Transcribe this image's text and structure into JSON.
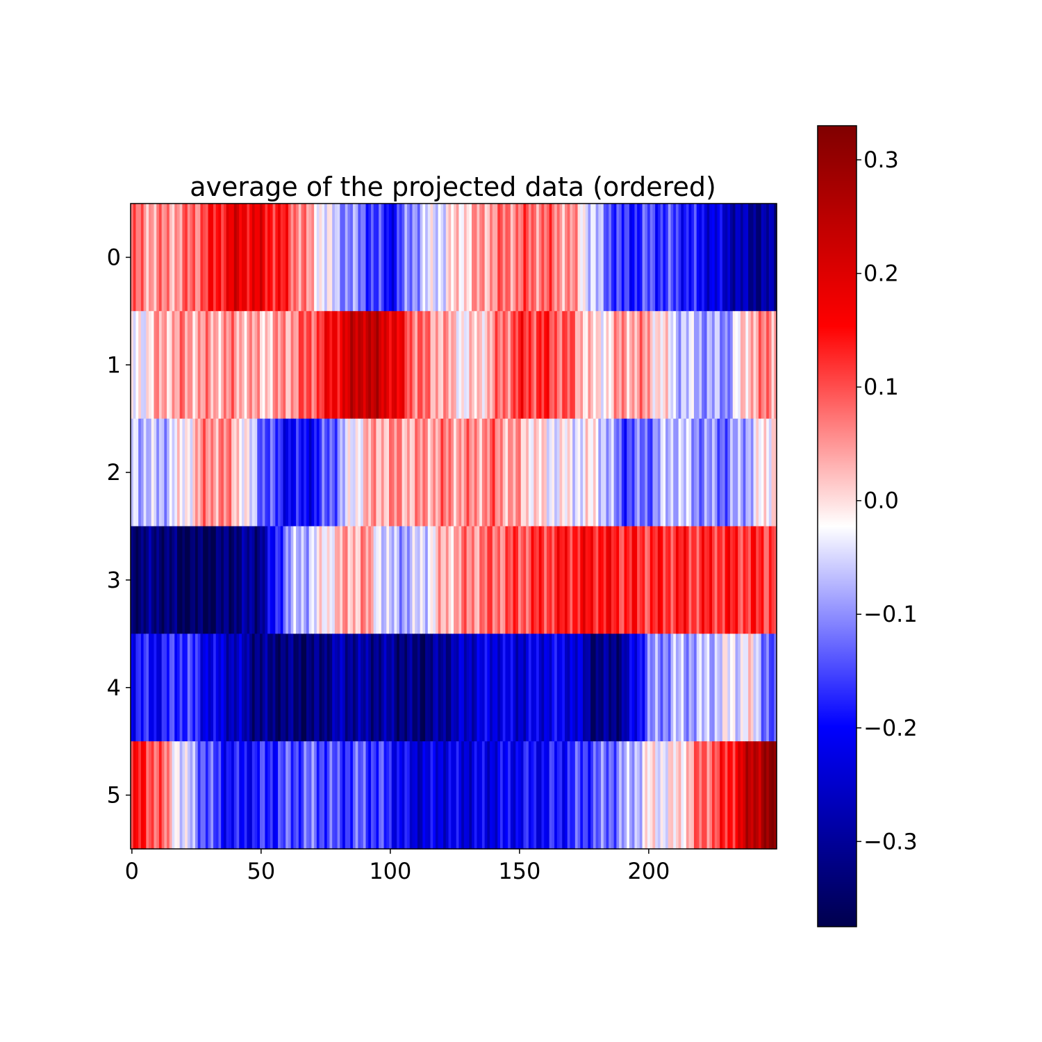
{
  "chart_data": {
    "type": "heatmap",
    "title": "average of the projected data (ordered)",
    "xlabel": "",
    "ylabel": "",
    "colormap": "seismic",
    "n_columns": 250,
    "rows": [
      0,
      1,
      2,
      3,
      4,
      5
    ],
    "xticks": [
      0,
      50,
      100,
      150,
      200
    ],
    "xlim": [
      -0.5,
      249.5
    ],
    "yticks": [
      0,
      1,
      2,
      3,
      4,
      5
    ],
    "vmin": -0.375,
    "vmax": 0.33,
    "colorbar_ticks": [
      0.3,
      0.2,
      0.1,
      0.0,
      -0.1,
      -0.2,
      -0.3
    ],
    "colorbar_tick_labels": [
      "0.3",
      "0.2",
      "0.1",
      "0.0",
      "−0.1",
      "−0.2",
      "−0.3"
    ],
    "row_profiles": [
      {
        "row": 0,
        "x": [
          0,
          10,
          20,
          30,
          40,
          50,
          60,
          70,
          80,
          90,
          100,
          110,
          120,
          130,
          140,
          150,
          160,
          170,
          180,
          190,
          200,
          210,
          220,
          230,
          240,
          249
        ],
        "values": [
          0.07,
          0.05,
          0.06,
          0.12,
          0.19,
          0.17,
          0.12,
          0.02,
          -0.08,
          -0.13,
          -0.2,
          -0.08,
          -0.03,
          0.02,
          0.06,
          0.08,
          0.08,
          0.05,
          -0.08,
          -0.18,
          -0.15,
          -0.16,
          -0.2,
          -0.25,
          -0.3,
          -0.3
        ]
      },
      {
        "row": 1,
        "x": [
          0,
          10,
          20,
          30,
          40,
          50,
          60,
          70,
          80,
          90,
          100,
          110,
          120,
          130,
          140,
          150,
          160,
          170,
          180,
          190,
          200,
          210,
          220,
          230,
          240,
          249
        ],
        "values": [
          -0.05,
          0.03,
          0.05,
          0.04,
          0.05,
          0.02,
          0.05,
          0.1,
          0.18,
          0.25,
          0.2,
          0.08,
          0.04,
          -0.02,
          0.05,
          0.12,
          0.12,
          0.08,
          -0.02,
          0.05,
          0.04,
          -0.05,
          -0.08,
          -0.1,
          0.05,
          0.06
        ]
      },
      {
        "row": 2,
        "x": [
          0,
          10,
          20,
          30,
          40,
          50,
          60,
          70,
          80,
          90,
          100,
          110,
          120,
          130,
          140,
          150,
          160,
          170,
          180,
          190,
          200,
          210,
          220,
          230,
          240,
          249
        ],
        "values": [
          -0.05,
          -0.08,
          -0.02,
          0.07,
          0.04,
          -0.12,
          -0.2,
          -0.2,
          -0.1,
          0.02,
          0.05,
          0.04,
          0.06,
          0.05,
          0.07,
          0.03,
          -0.02,
          -0.03,
          -0.02,
          -0.15,
          -0.12,
          -0.05,
          -0.1,
          -0.12,
          -0.06,
          0.02
        ]
      },
      {
        "row": 3,
        "x": [
          0,
          10,
          20,
          30,
          40,
          50,
          60,
          70,
          80,
          90,
          100,
          110,
          120,
          130,
          140,
          150,
          160,
          170,
          180,
          190,
          200,
          210,
          220,
          230,
          240,
          249
        ],
        "values": [
          -0.34,
          -0.32,
          -0.36,
          -0.36,
          -0.32,
          -0.3,
          -0.1,
          -0.05,
          0.02,
          0.05,
          -0.08,
          -0.07,
          0.02,
          0.06,
          0.08,
          0.1,
          0.12,
          0.14,
          0.15,
          0.13,
          0.12,
          0.13,
          0.12,
          0.13,
          0.12,
          0.12
        ]
      },
      {
        "row": 4,
        "x": [
          0,
          10,
          20,
          30,
          40,
          50,
          60,
          70,
          80,
          90,
          100,
          110,
          120,
          130,
          140,
          150,
          160,
          170,
          180,
          190,
          200,
          210,
          220,
          230,
          240,
          249
        ],
        "values": [
          -0.18,
          -0.2,
          -0.15,
          -0.22,
          -0.26,
          -0.32,
          -0.33,
          -0.34,
          -0.28,
          -0.3,
          -0.3,
          -0.34,
          -0.3,
          -0.25,
          -0.22,
          -0.24,
          -0.22,
          -0.22,
          -0.33,
          -0.3,
          -0.12,
          -0.08,
          -0.08,
          -0.04,
          -0.02,
          -0.18
        ]
      },
      {
        "row": 5,
        "x": [
          0,
          10,
          20,
          30,
          40,
          50,
          60,
          70,
          80,
          90,
          100,
          110,
          120,
          130,
          140,
          150,
          160,
          170,
          180,
          190,
          200,
          210,
          220,
          230,
          240,
          249
        ],
        "values": [
          0.14,
          0.1,
          -0.05,
          -0.15,
          -0.2,
          -0.18,
          -0.15,
          -0.13,
          -0.16,
          -0.14,
          -0.18,
          -0.24,
          -0.22,
          -0.23,
          -0.22,
          -0.2,
          -0.2,
          -0.17,
          -0.14,
          -0.1,
          -0.02,
          -0.02,
          0.08,
          0.12,
          0.25,
          0.31
        ]
      }
    ]
  }
}
